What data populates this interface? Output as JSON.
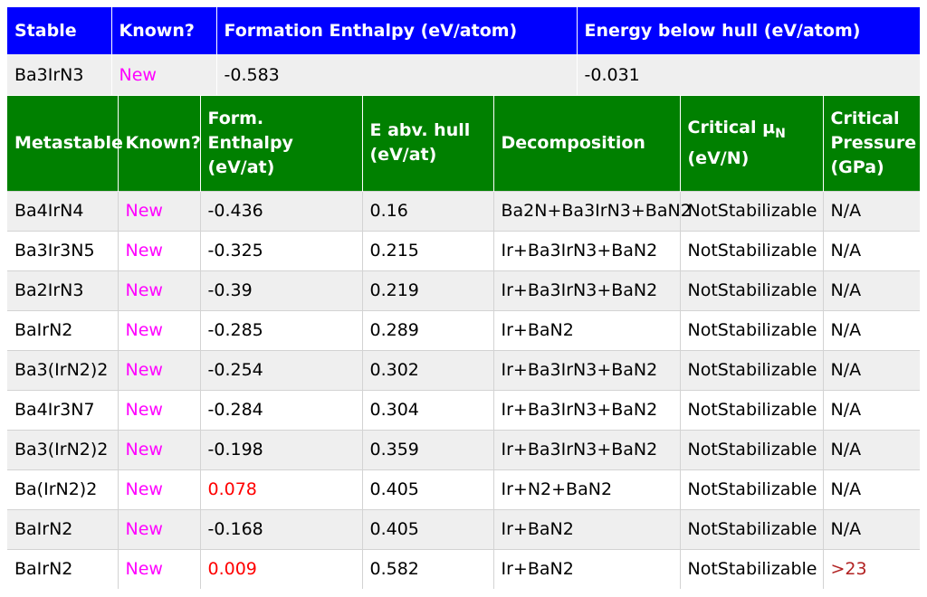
{
  "colors": {
    "stable_header_bg": "#0000ff",
    "meta_header_bg": "#008000",
    "new_text": "#ff00ff",
    "positive_enthalpy_text": "#ff0000",
    "pressure_value_text": "#b22222",
    "row_alt_bg": "#efefef"
  },
  "stable": {
    "headers": [
      "Stable",
      "Known?",
      "Formation Enthalpy (eV/atom)",
      "Energy below hull (eV/atom)"
    ],
    "row": {
      "formula": "Ba3IrN3",
      "known": "New",
      "formation_enthalpy": "-0.583",
      "energy_below_hull": "-0.031"
    }
  },
  "metastable": {
    "headers": {
      "metastable": "Metastable",
      "known": "Known?",
      "form_enthalpy_line1": "Form. Enthalpy",
      "form_enthalpy_line2": "(eV/at)",
      "e_abv_hull_line1": "E abv. hull",
      "e_abv_hull_line2": "(eV/at)",
      "decomposition": "Decomposition",
      "critical_mu_prefix": "Critical μ",
      "critical_mu_sub": "N",
      "critical_mu_unit": "(eV/N)",
      "critical_pressure_line1": "Critical",
      "critical_pressure_line2": "Pressure",
      "critical_pressure_line3": "(GPa)"
    },
    "rows": [
      {
        "formula": "Ba4IrN4",
        "known": "New",
        "form_enthalpy": "-0.436",
        "e_abv_hull": "0.16",
        "decomposition": "Ba2N+Ba3IrN3+BaN2",
        "critical_mu": "NotStabilizable",
        "critical_pressure": "N/A"
      },
      {
        "formula": "Ba3Ir3N5",
        "known": "New",
        "form_enthalpy": "-0.325",
        "e_abv_hull": "0.215",
        "decomposition": "Ir+Ba3IrN3+BaN2",
        "critical_mu": "NotStabilizable",
        "critical_pressure": "N/A"
      },
      {
        "formula": "Ba2IrN3",
        "known": "New",
        "form_enthalpy": "-0.39",
        "e_abv_hull": "0.219",
        "decomposition": "Ir+Ba3IrN3+BaN2",
        "critical_mu": "NotStabilizable",
        "critical_pressure": "N/A"
      },
      {
        "formula": "BaIrN2",
        "known": "New",
        "form_enthalpy": "-0.285",
        "e_abv_hull": "0.289",
        "decomposition": "Ir+BaN2",
        "critical_mu": "NotStabilizable",
        "critical_pressure": "N/A"
      },
      {
        "formula": "Ba3(IrN2)2",
        "known": "New",
        "form_enthalpy": "-0.254",
        "e_abv_hull": "0.302",
        "decomposition": "Ir+Ba3IrN3+BaN2",
        "critical_mu": "NotStabilizable",
        "critical_pressure": "N/A"
      },
      {
        "formula": "Ba4Ir3N7",
        "known": "New",
        "form_enthalpy": "-0.284",
        "e_abv_hull": "0.304",
        "decomposition": "Ir+Ba3IrN3+BaN2",
        "critical_mu": "NotStabilizable",
        "critical_pressure": "N/A"
      },
      {
        "formula": "Ba3(IrN2)2",
        "known": "New",
        "form_enthalpy": "-0.198",
        "e_abv_hull": "0.359",
        "decomposition": "Ir+Ba3IrN3+BaN2",
        "critical_mu": "NotStabilizable",
        "critical_pressure": "N/A"
      },
      {
        "formula": "Ba(IrN2)2",
        "known": "New",
        "form_enthalpy": "0.078",
        "e_abv_hull": "0.405",
        "decomposition": "Ir+N2+BaN2",
        "critical_mu": "NotStabilizable",
        "critical_pressure": "N/A"
      },
      {
        "formula": "BaIrN2",
        "known": "New",
        "form_enthalpy": "-0.168",
        "e_abv_hull": "0.405",
        "decomposition": "Ir+BaN2",
        "critical_mu": "NotStabilizable",
        "critical_pressure": "N/A"
      },
      {
        "formula": "BaIrN2",
        "known": "New",
        "form_enthalpy": "0.009",
        "e_abv_hull": "0.582",
        "decomposition": "Ir+BaN2",
        "critical_mu": "NotStabilizable",
        "critical_pressure": ">23"
      }
    ]
  }
}
